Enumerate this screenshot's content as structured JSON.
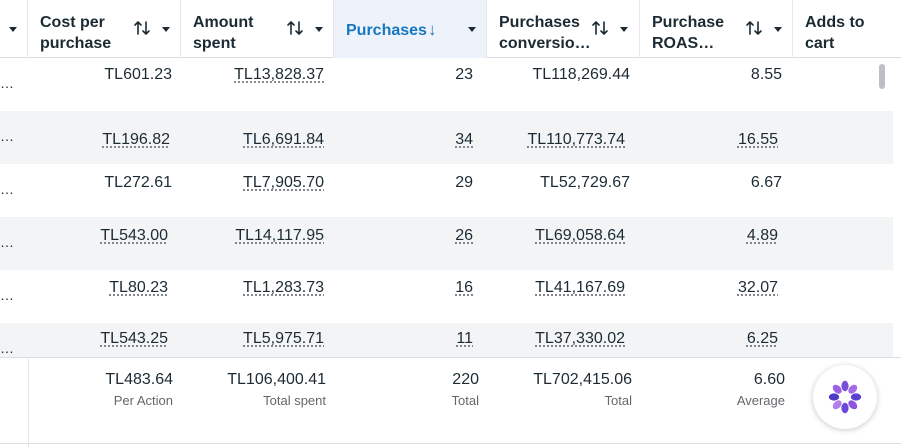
{
  "columns": [
    {
      "id": "cost_per_purchase",
      "label_line1": "Cost per",
      "label_line2": "purchase",
      "sort_icon": "sort-arrows-icon",
      "menu_icon": "caret-down-icon"
    },
    {
      "id": "amount_spent",
      "label_line1": "Amount",
      "label_line2": "spent",
      "sort_icon": "sort-arrows-icon",
      "menu_icon": "caret-down-icon"
    },
    {
      "id": "purchases",
      "label": "Purchases",
      "sort_indicator": "↓",
      "sort_icon": "arrow-down-icon",
      "menu_icon": "caret-down-icon",
      "active": true
    },
    {
      "id": "purchases_conversion_value",
      "label_line1": "Purchases",
      "label_line2": "conversio…",
      "sort_icon": "sort-arrows-icon",
      "menu_icon": "caret-down-icon"
    },
    {
      "id": "purchase_roas",
      "label_line1": "Purchase",
      "label_line2": "ROAS…",
      "sort_icon": "sort-arrows-icon",
      "menu_icon": "caret-down-icon"
    },
    {
      "id": "adds_to_cart",
      "label_line1": "Adds to",
      "label_line2": "cart"
    }
  ],
  "rows": [
    {
      "ellipsis": "…",
      "cost_per_purchase": "TL601.23",
      "amount_spent": "TL13,828.37",
      "purchases": "23",
      "conversion_value": "TL118,269.44",
      "roas": "8.55",
      "adds_to_cart": ""
    },
    {
      "ellipsis": "…",
      "cost_per_purchase": "TL196.82",
      "amount_spent": "TL6,691.84",
      "purchases": "34",
      "conversion_value": "TL110,773.74",
      "roas": "16.55",
      "adds_to_cart": ""
    },
    {
      "ellipsis": "…",
      "cost_per_purchase": "TL272.61",
      "amount_spent": "TL7,905.70",
      "purchases": "29",
      "conversion_value": "TL52,729.67",
      "roas": "6.67",
      "adds_to_cart": ""
    },
    {
      "ellipsis": "…",
      "cost_per_purchase": "TL543.00",
      "amount_spent": "TL14,117.95",
      "purchases": "26",
      "conversion_value": "TL69,058.64",
      "roas": "4.89",
      "adds_to_cart": ""
    },
    {
      "ellipsis": "…",
      "cost_per_purchase": "TL80.23",
      "amount_spent": "TL1,283.73",
      "purchases": "16",
      "conversion_value": "TL41,167.69",
      "roas": "32.07",
      "adds_to_cart": ""
    },
    {
      "ellipsis": "…",
      "cost_per_purchase": "TL543.25",
      "amount_spent": "TL5,975.71",
      "purchases": "11",
      "conversion_value": "TL37,330.02",
      "roas": "6.25",
      "adds_to_cart": ""
    }
  ],
  "totals": {
    "cost_per_purchase": {
      "value": "TL483.64",
      "caption": "Per Action"
    },
    "amount_spent": {
      "value": "TL106,400.41",
      "caption": "Total spent"
    },
    "purchases": {
      "value": "220",
      "caption": "Total"
    },
    "conversion_value": {
      "value": "TL702,415.06",
      "caption": "Total"
    },
    "roas": {
      "value": "6.60",
      "caption": "Average"
    }
  },
  "icons": {
    "helper": "flower-logo-icon",
    "sort": "sort-arrows-icon",
    "menu": "caret-down-icon"
  },
  "colors": {
    "active_header": "#1877c1",
    "text": "#1c2b33",
    "muted": "#65676b",
    "row_alt": "#f2f4f6",
    "helper_purple": "#7b4fd6"
  }
}
